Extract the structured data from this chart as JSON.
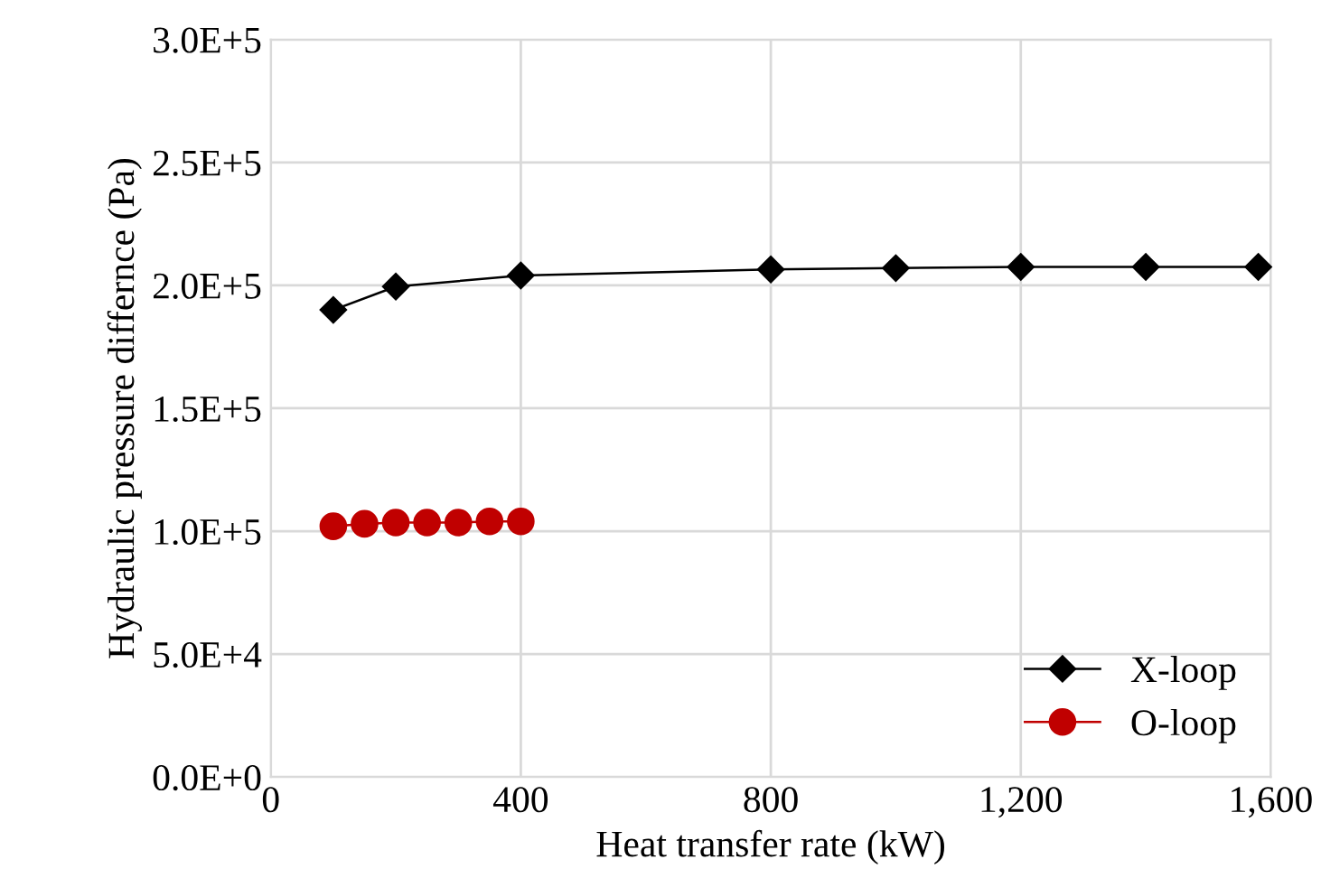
{
  "chart_data": {
    "type": "line",
    "xlabel": "Heat transfer rate (kW)",
    "ylabel": "Hydraulic pressure differnce (Pa)",
    "series": [
      {
        "name": "X-loop",
        "color": "#000000",
        "marker": "diamond",
        "x": [
          100,
          200,
          400,
          800,
          1000,
          1200,
          1400,
          1580
        ],
        "values": [
          190000,
          199500,
          204000,
          206500,
          207000,
          207500,
          207500,
          207500
        ]
      },
      {
        "name": "O-loop",
        "color": "#c00000",
        "marker": "circle",
        "x": [
          100,
          150,
          200,
          250,
          300,
          350,
          400
        ],
        "values": [
          102000,
          103000,
          103500,
          103500,
          103500,
          104000,
          104000
        ]
      }
    ],
    "xlim": [
      0,
      1600
    ],
    "xticks": [
      0,
      400,
      800,
      {
        "value": 1200,
        "label": "1,200"
      },
      {
        "value": 1600,
        "label": "1,600"
      }
    ],
    "ylim": [
      0,
      300000
    ],
    "yticks": [
      {
        "value": 0,
        "label": "0.0E+0"
      },
      {
        "value": 50000,
        "label": "5.0E+4"
      },
      {
        "value": 100000,
        "label": "1.0E+5"
      },
      {
        "value": 150000,
        "label": "1.5E+5"
      },
      {
        "value": 200000,
        "label": "2.0E+5"
      },
      {
        "value": 250000,
        "label": "2.5E+5"
      },
      {
        "value": 300000,
        "label": "3.0E+5"
      }
    ],
    "grid": true,
    "legend": "bottom right",
    "line_style": "solid"
  }
}
